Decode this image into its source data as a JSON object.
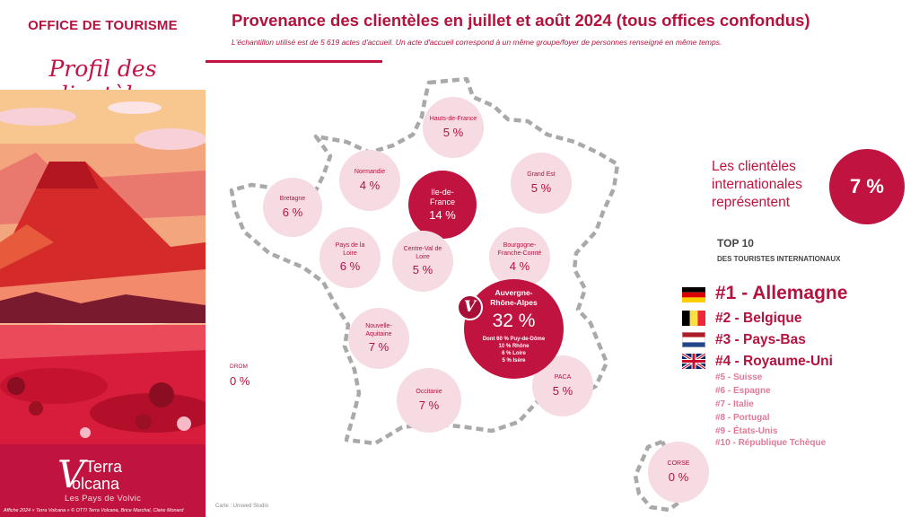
{
  "left_panel": {
    "office_title": "OFFICE DE TOURISME",
    "profile_title": "Profil des clientèles",
    "brand": {
      "letter": "V",
      "line1": "Terra",
      "line2": "olcana",
      "tagline": "Les Pays de Volvic"
    },
    "credit": "Affiche 2024 « Terra Volcana » © OTTI Terra Volcana, Brice Marchal, Claire Monard"
  },
  "header": {
    "title": "Provenance des clientèles en juillet et août 2024 (tous offices confondus)",
    "subtitle": "L'échantillon utilisé est de 5 619 actes d'accueil. Un acte d'accueil correspond à un même groupe/foyer de personnes renseigné en même temps."
  },
  "regions": {
    "hauts_de_france": {
      "name": "Hauts-de-France",
      "value": "5 %"
    },
    "normandie": {
      "name": "Normandie",
      "value": "4 %"
    },
    "grand_est": {
      "name": "Grand Est",
      "value": "5 %"
    },
    "bretagne": {
      "name": "Bretagne",
      "value": "6 %"
    },
    "ile_de_france": {
      "name": "Ile-de-France",
      "value": "14 %"
    },
    "pays_de_la_loire": {
      "name": "Pays de la Loire",
      "value": "6 %"
    },
    "centre_val_de_loire": {
      "name": "Centre-Val de Loire",
      "value": "5 %"
    },
    "bourgogne_franche_comte": {
      "name": "Bourgogne-Franche-Comté",
      "value": "4 %"
    },
    "auvergne_rhone_alpes": {
      "name": "Auvergne-Rhône-Alpes",
      "value": "32 %",
      "details": [
        "Dont 60 % Puy-de-Dôme",
        "10 % Rhône",
        "6 % Loire",
        "5 % Isère"
      ],
      "badge": "V"
    },
    "nouvelle_aquitaine": {
      "name": "Nouvelle-Aquitaine",
      "value": "7 %"
    },
    "occitanie": {
      "name": "Occitanie",
      "value": "7 %"
    },
    "paca": {
      "name": "PACA",
      "value": "5 %"
    },
    "corse": {
      "name": "CORSE",
      "value": "0 %"
    },
    "drom": {
      "name": "DROM",
      "value": "0 %"
    }
  },
  "map_credit": "Carte : Unseed Studio",
  "international": {
    "text": "Les clientèles internationales représentent",
    "value": "7 %"
  },
  "top10": {
    "title": "TOP 10",
    "subtitle": "DES TOURISTES INTERNATIONAUX",
    "entries": [
      {
        "label": "#1 - Allemagne",
        "flag": "germany-flag"
      },
      {
        "label": "#2 - Belgique",
        "flag": "belgium-flag"
      },
      {
        "label": "#3 - Pays-Bas",
        "flag": "netherlands-flag"
      },
      {
        "label": "#4 - Royaume-Uni",
        "flag": "uk-flag"
      },
      {
        "label": "#5 - Suisse"
      },
      {
        "label": "#6 - Espagne"
      },
      {
        "label": "#7 - Italie"
      },
      {
        "label": "#8 - Portugal"
      },
      {
        "label": "#9 - États-Unis"
      },
      {
        "label": "#10 - République Tchèque"
      }
    ]
  },
  "colors": {
    "brand": "#c0133f",
    "region_light": "#f6dbe2",
    "secondary_rank": "#e07a96"
  }
}
